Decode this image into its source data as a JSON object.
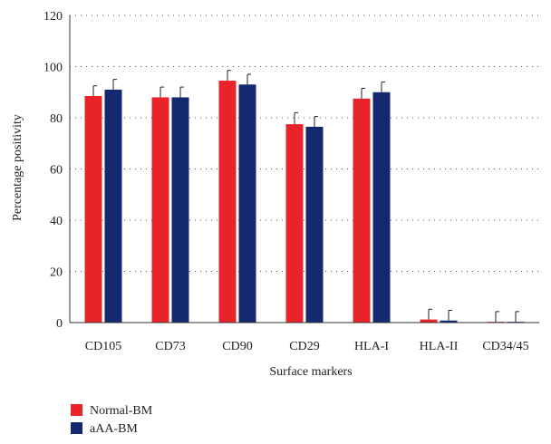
{
  "chart_data": {
    "type": "bar",
    "xlabel": "Surface markers",
    "ylabel": "Percentage positivity",
    "ylim": [
      0,
      120
    ],
    "yticks": [
      0,
      20,
      40,
      60,
      80,
      100,
      120
    ],
    "grid": "horizontal dotted",
    "legend_position": "bottom-left",
    "categories": [
      "CD105",
      "CD73",
      "CD90",
      "CD29",
      "HLA-I",
      "HLA-II",
      "CD34/45"
    ],
    "series": [
      {
        "name": "Normal-BM",
        "color": "#e8242a",
        "values": [
          88.5,
          88,
          94.5,
          77.5,
          87.5,
          1.2,
          0.3
        ],
        "errors": [
          4,
          4,
          4,
          4.5,
          4,
          4,
          4
        ]
      },
      {
        "name": "aAA-BM",
        "color": "#14286e",
        "values": [
          91,
          88,
          93,
          76.5,
          90,
          0.8,
          0.3
        ],
        "errors": [
          4,
          4,
          4,
          4,
          4,
          4,
          4
        ]
      }
    ]
  }
}
